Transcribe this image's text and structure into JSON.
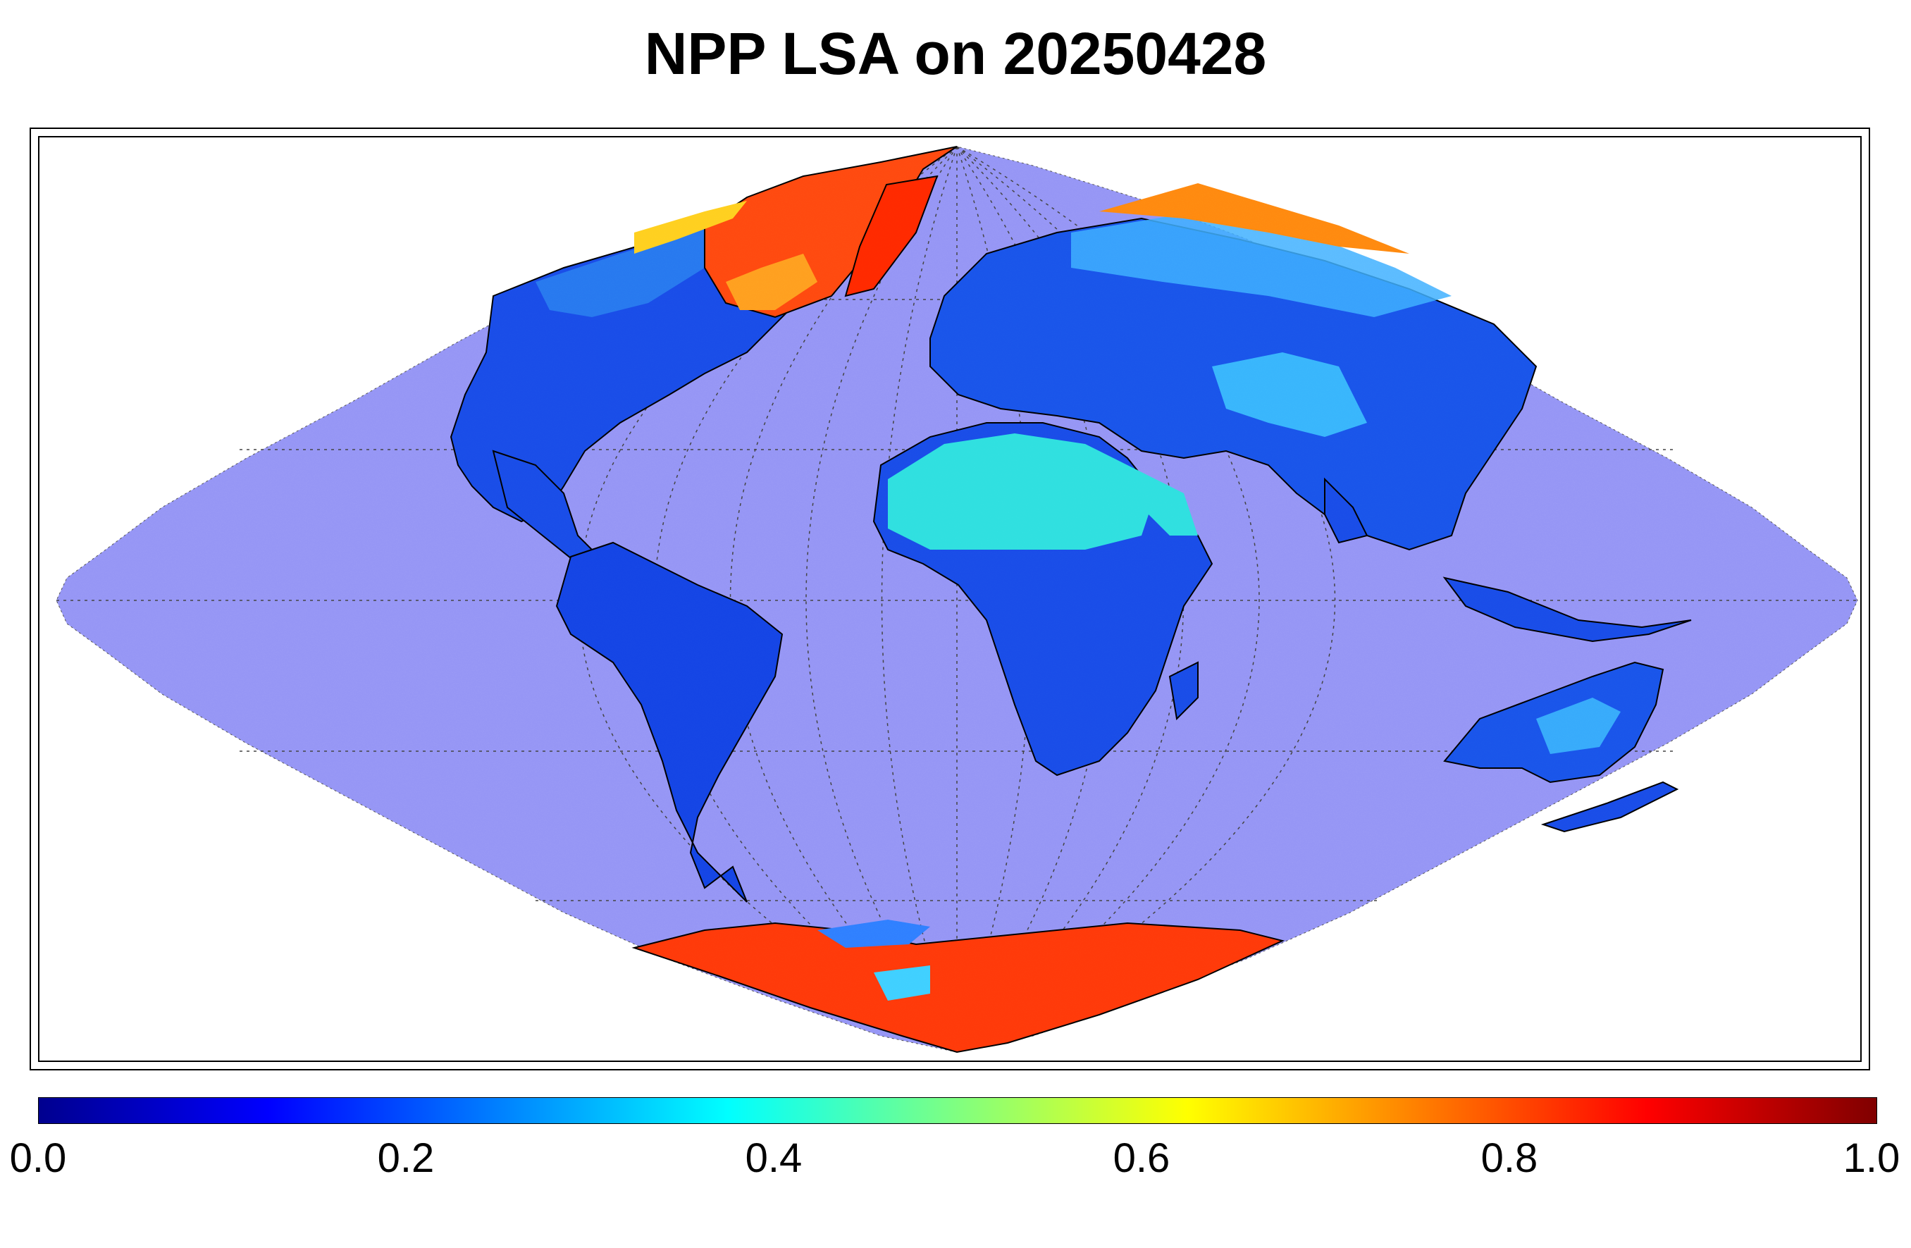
{
  "title": "NPP LSA on 20250428",
  "colorbar": {
    "colormap": "jet",
    "min": 0.0,
    "max": 1.0,
    "ticks": [
      "0.0",
      "0.2",
      "0.4",
      "0.6",
      "0.8",
      "1.0"
    ]
  },
  "map": {
    "projection": "sinusoidal",
    "ocean_color": "#9696f5",
    "graticule": "dotted",
    "coastlines": true
  }
}
